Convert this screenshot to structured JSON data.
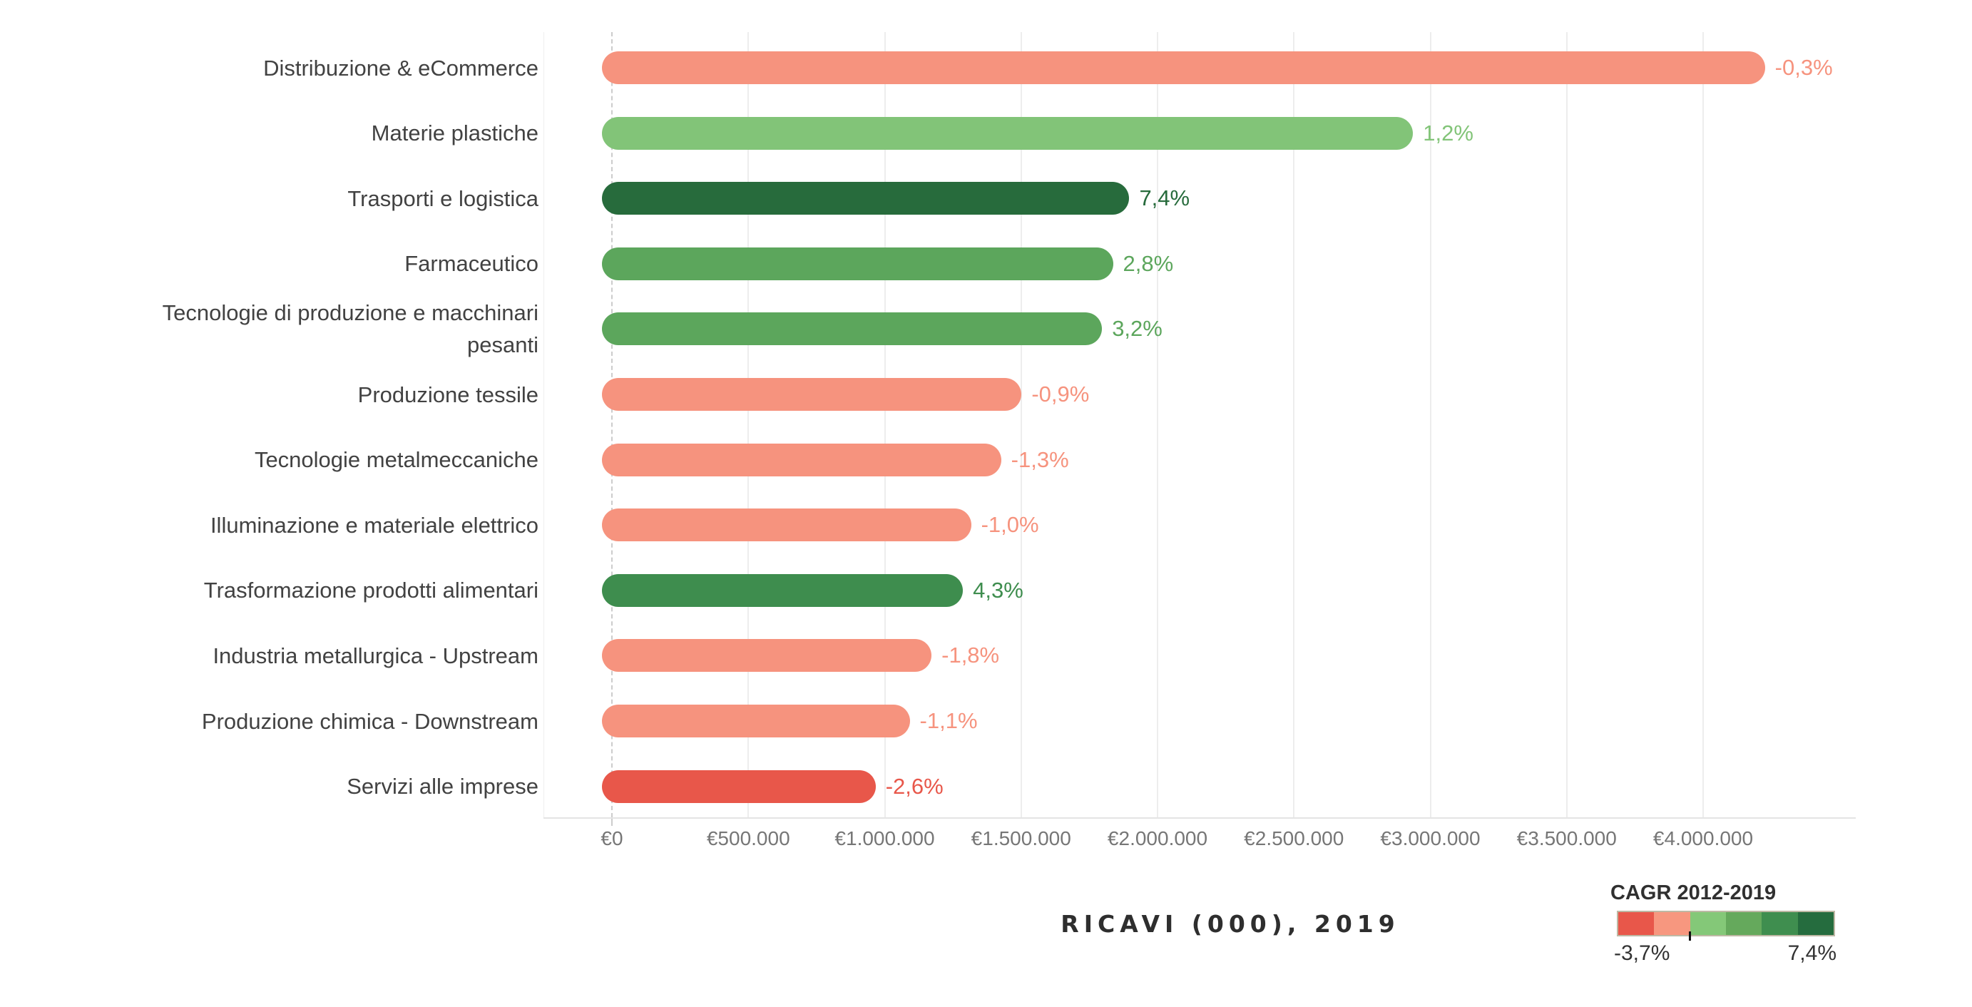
{
  "chart_data": {
    "type": "bar",
    "orientation": "horizontal",
    "title": "RICAVI (000), 2019",
    "categories": [
      "Distribuzione & eCommerce",
      "Materie plastiche",
      "Trasporti e logistica",
      "Farmaceutico",
      "Tecnologie di produzione e macchinari pesanti",
      "Produzione tessile",
      "Tecnologie metalmeccaniche",
      "Illuminazione e materiale elettrico",
      "Trasformazione prodotti alimentari",
      "Industria metallurgica - Upstream",
      "Produzione chimica - Downstream",
      "Servizi alle imprese"
    ],
    "series": [
      {
        "name": "Ricavi (000), 2019",
        "values": [
          4190000,
          2900000,
          1860000,
          1800000,
          1760000,
          1465000,
          1390000,
          1280000,
          1250000,
          1135000,
          1055000,
          930000
        ]
      }
    ],
    "bar_value_labels": [
      "-0,3%",
      "1,2%",
      "7,4%",
      "2,8%",
      "3,2%",
      "-0,9%",
      "-1,3%",
      "-1,0%",
      "4,3%",
      "-1,8%",
      "-1,1%",
      "-2,6%"
    ],
    "bar_colors": [
      "#F6937E",
      "#82C478",
      "#276B3C",
      "#5CA65C",
      "#5CA65C",
      "#F6937E",
      "#F6937E",
      "#F6937E",
      "#3E8D4E",
      "#F6937E",
      "#F6937E",
      "#E8574A"
    ],
    "x_axis": {
      "tick_labels": [
        "€0",
        "€500.000",
        "€1.000.000",
        "€1.500.000",
        "€2.000.000",
        "€2.500.000",
        "€3.000.000",
        "€3.500.000",
        "€4.000.000"
      ],
      "tick_values": [
        0,
        500000,
        1000000,
        1500000,
        2000000,
        2500000,
        3000000,
        3500000,
        4000000
      ],
      "range": [
        0,
        4500000
      ],
      "grid": true,
      "zero_line_style": "dashed"
    },
    "legend": {
      "title": "CAGR 2012-2019",
      "min_label": "-3,7%",
      "max_label": "7,4%",
      "min_value": -3.7,
      "max_value": 7.4,
      "colors": [
        "#E8574A",
        "#F7977F",
        "#84C878",
        "#65A95C",
        "#3F8E4F",
        "#256C3E"
      ],
      "position": "bottom-right",
      "zero_tick_fraction": 0.333
    }
  }
}
